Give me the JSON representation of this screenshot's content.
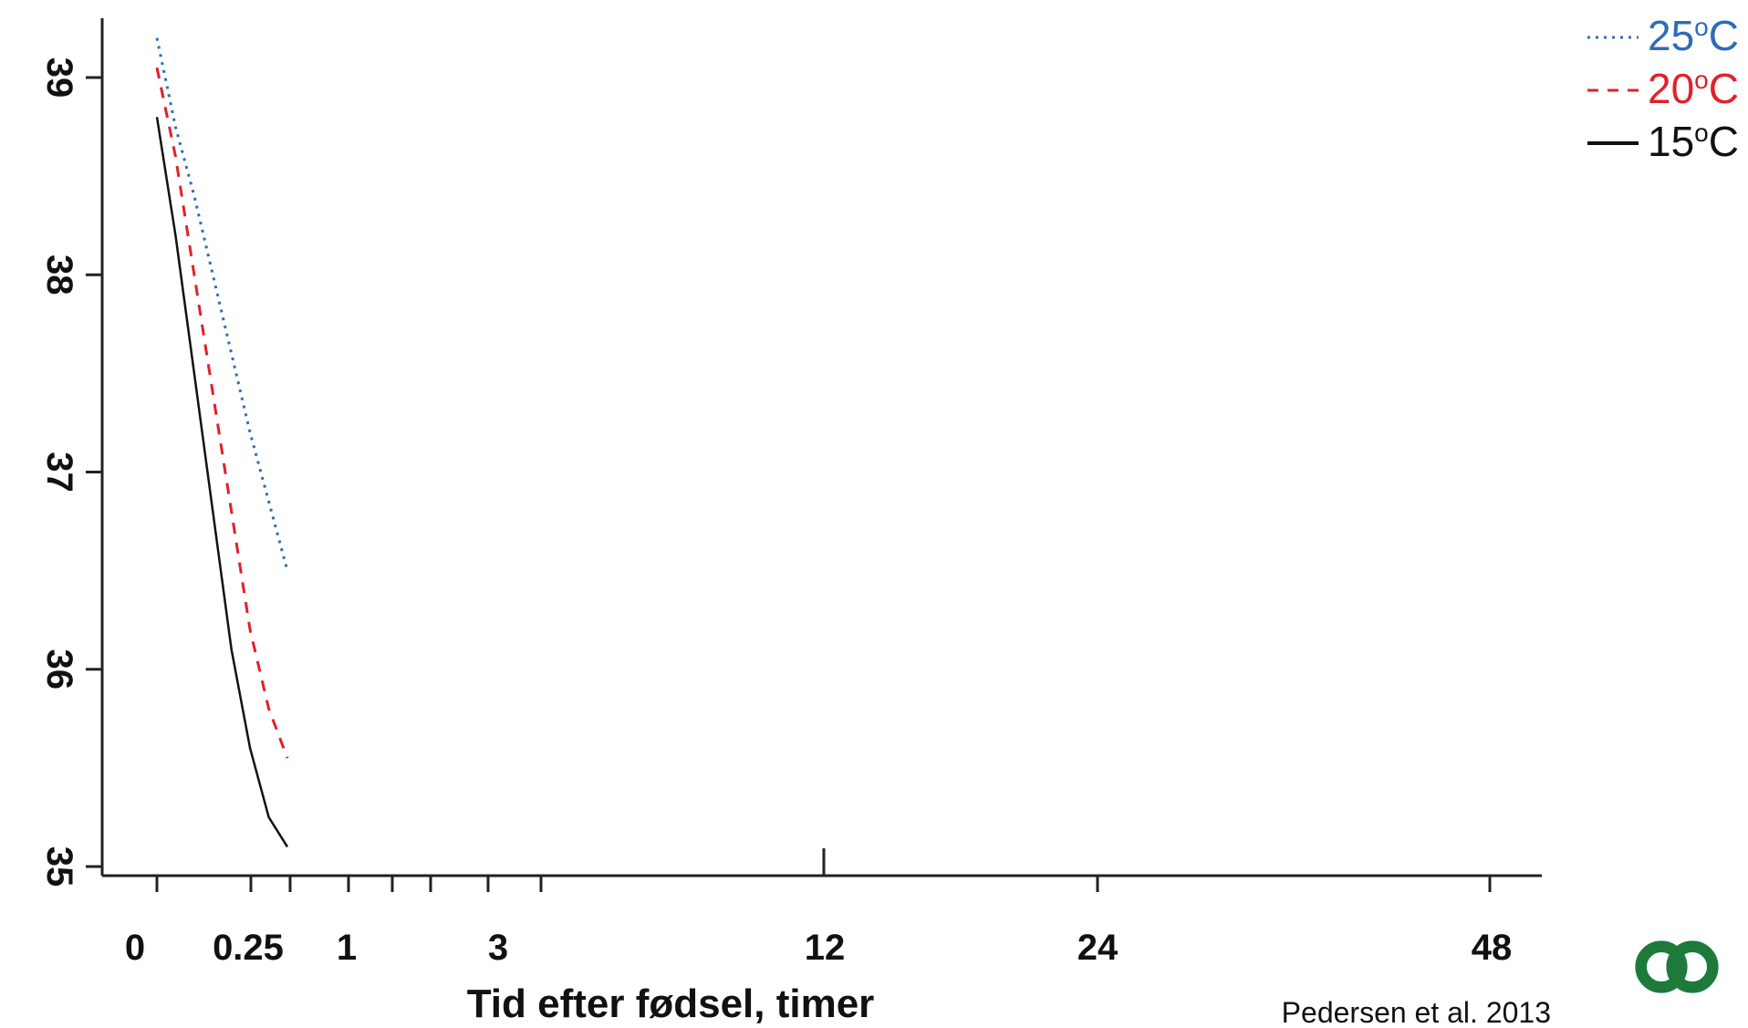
{
  "chart_data": {
    "type": "line",
    "title": "",
    "xlabel": "Tid efter fødsel, timer",
    "ylabel": "",
    "x_tick_labels": [
      "0",
      "0.25",
      "1",
      "3",
      "12",
      "24",
      "48"
    ],
    "y_tick_labels": [
      "35",
      "36",
      "37",
      "38",
      "39"
    ],
    "ylim": [
      35,
      39.4
    ],
    "legend_position": "top-right",
    "series": [
      {
        "name": "25",
        "unit": "oC",
        "color": "#2e6db3",
        "style": "dotted",
        "points": [
          [
            0.0,
            39.2
          ],
          [
            0.05,
            38.75
          ],
          [
            0.1,
            38.4
          ],
          [
            0.15,
            38.0
          ],
          [
            0.2,
            37.6
          ],
          [
            0.25,
            37.2
          ],
          [
            0.3,
            36.85
          ],
          [
            0.35,
            36.5
          ]
        ]
      },
      {
        "name": "20",
        "unit": "oC",
        "color": "#e0212b",
        "style": "dashed",
        "points": [
          [
            0.0,
            39.05
          ],
          [
            0.05,
            38.6
          ],
          [
            0.1,
            38.0
          ],
          [
            0.15,
            37.4
          ],
          [
            0.2,
            36.8
          ],
          [
            0.25,
            36.2
          ],
          [
            0.3,
            35.8
          ],
          [
            0.35,
            35.55
          ]
        ]
      },
      {
        "name": "15",
        "unit": "oC",
        "color": "#111111",
        "style": "solid",
        "points": [
          [
            0.0,
            38.8
          ],
          [
            0.05,
            38.2
          ],
          [
            0.1,
            37.5
          ],
          [
            0.15,
            36.8
          ],
          [
            0.2,
            36.1
          ],
          [
            0.25,
            35.6
          ],
          [
            0.3,
            35.25
          ],
          [
            0.35,
            35.1
          ]
        ]
      }
    ],
    "citation": "Pedersen et al. 2013"
  }
}
